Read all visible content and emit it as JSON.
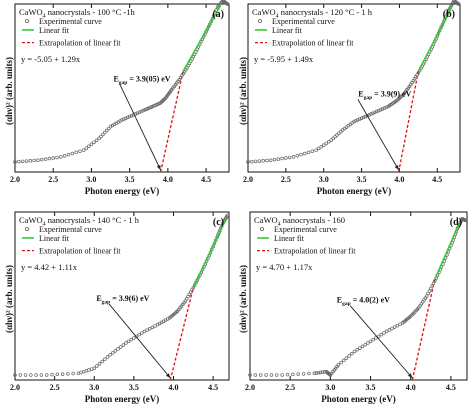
{
  "chart_data": [
    {
      "type": "scatter",
      "panel_letter": "(a)",
      "title": "CaWO4 nanocrystals - 100 °C -1h",
      "title_prefix": "CaWO",
      "title_sub": "4",
      "title_suffix": " nanocrystals - 100 °C -1h",
      "xlabel": "Photon energy (eV)",
      "ylabel": "(αhν)² (arb. units)",
      "xlim": [
        2.0,
        4.8
      ],
      "ylim": [
        0,
        1
      ],
      "xticks": [
        "2.0",
        "2.5",
        "3.0",
        "3.5",
        "4.0",
        "4.5"
      ],
      "xtick_values": [
        2.0,
        2.5,
        3.0,
        3.5,
        4.0,
        4.5
      ],
      "legend": [
        "Experimental curve",
        "Linear fit",
        "Extrapolation of linear fit"
      ],
      "equation": "y = -5.05 + 1.29x",
      "gap_label": "E",
      "gap_sub": "gap",
      "gap_value": " = 3.9(05) eV",
      "gap_eV": 3.905,
      "series": [
        {
          "name": "Experimental curve",
          "x": [
            2.0,
            2.3,
            2.6,
            2.9,
            3.1,
            3.25,
            3.4,
            3.55,
            3.7,
            3.8,
            3.9,
            3.97,
            4.05,
            4.15,
            4.25,
            4.35,
            4.45,
            4.55,
            4.65,
            4.72,
            4.78
          ],
          "y": [
            0.06,
            0.07,
            0.09,
            0.13,
            0.2,
            0.27,
            0.31,
            0.34,
            0.37,
            0.39,
            0.41,
            0.44,
            0.49,
            0.55,
            0.62,
            0.7,
            0.79,
            0.88,
            0.98,
            1.02,
            1.0
          ]
        },
        {
          "name": "Linear fit",
          "x": [
            4.2,
            4.7
          ],
          "y": [
            0.6,
            1.0
          ]
        },
        {
          "name": "Extrapolation of linear fit",
          "x": [
            3.905,
            4.2
          ],
          "y": [
            0.0,
            0.6
          ]
        }
      ],
      "legend_position": "top-left",
      "grid": false
    },
    {
      "type": "scatter",
      "panel_letter": "(b)",
      "title": "CaWO4 nanocrystals - 120 °C - 1 h",
      "title_prefix": "CaWO",
      "title_sub": "4",
      "title_suffix": " nanocrystals - 120 °C - 1 h",
      "xlabel": "Photon energy (eV)",
      "ylabel": "(αhν)² (arb. units)",
      "xlim": [
        2.0,
        4.8
      ],
      "ylim": [
        0,
        1
      ],
      "xticks": [
        "2.0",
        "2.5",
        "3.0",
        "3.5",
        "4.0",
        "4.5"
      ],
      "xtick_values": [
        2.0,
        2.5,
        3.0,
        3.5,
        4.0,
        4.5
      ],
      "legend": [
        "Experimental curve",
        "Linear fit",
        "Extrapolation of linear fit"
      ],
      "equation": "y = -5.95 + 1.49x",
      "gap_label": "E",
      "gap_sub": "gap",
      "gap_value": " = 3.9(9) eV",
      "gap_eV": 3.99,
      "series": [
        {
          "name": "Experimental curve",
          "x": [
            2.0,
            2.3,
            2.6,
            2.9,
            3.1,
            3.25,
            3.4,
            3.55,
            3.7,
            3.85,
            3.95,
            4.05,
            4.15,
            4.25,
            4.35,
            4.45,
            4.55,
            4.65,
            4.72,
            4.78
          ],
          "y": [
            0.06,
            0.07,
            0.09,
            0.13,
            0.19,
            0.25,
            0.3,
            0.33,
            0.36,
            0.39,
            0.42,
            0.46,
            0.52,
            0.59,
            0.67,
            0.76,
            0.86,
            0.96,
            1.02,
            1.0
          ]
        },
        {
          "name": "Linear fit",
          "x": [
            4.25,
            4.7
          ],
          "y": [
            0.6,
            0.99
          ]
        },
        {
          "name": "Extrapolation of linear fit",
          "x": [
            3.99,
            4.25
          ],
          "y": [
            0.0,
            0.6
          ]
        }
      ],
      "legend_position": "top-left",
      "grid": false
    },
    {
      "type": "scatter",
      "panel_letter": "(c)",
      "title": "CaWO4 nanocrystals - 140 °C - 1 h",
      "title_prefix": "CaWO",
      "title_sub": "4",
      "title_suffix": " nanocrystals - 140 °C - 1 h",
      "xlabel": "Photon energy (eV)",
      "ylabel": "(αhν)² (arb. units)",
      "xlim": [
        2.0,
        4.7
      ],
      "ylim": [
        0,
        1
      ],
      "xticks": [
        "2.0",
        "2.5",
        "3.0",
        "3.5",
        "4.0",
        "4.5"
      ],
      "xtick_values": [
        2.0,
        2.5,
        3.0,
        3.5,
        4.0,
        4.5
      ],
      "legend": [
        "Experimental curve",
        "Linear fit",
        "Extrapolation of linear fit"
      ],
      "equation": "y = 4.42 + 1.11x",
      "gap_label": "E",
      "gap_sub": "gap",
      "gap_value": " = 3.9(6) eV",
      "gap_eV": 3.96,
      "series": [
        {
          "name": "Experimental curve",
          "x": [
            2.0,
            2.4,
            2.8,
            3.0,
            3.2,
            3.4,
            3.6,
            3.8,
            3.95,
            4.05,
            4.15,
            4.25,
            4.35,
            4.45,
            4.55,
            4.62,
            4.68
          ],
          "y": [
            0.03,
            0.03,
            0.04,
            0.07,
            0.15,
            0.22,
            0.28,
            0.33,
            0.37,
            0.41,
            0.47,
            0.55,
            0.64,
            0.74,
            0.85,
            0.93,
            0.98
          ]
        },
        {
          "name": "Linear fit",
          "x": [
            4.25,
            4.65
          ],
          "y": [
            0.55,
            0.95
          ]
        },
        {
          "name": "Extrapolation of linear fit",
          "x": [
            3.96,
            4.25
          ],
          "y": [
            0.0,
            0.55
          ]
        }
      ],
      "legend_position": "top-left",
      "grid": false
    },
    {
      "type": "scatter",
      "panel_letter": "(d)",
      "title": "CaWO4 nanocrystals - 160",
      "title_prefix": "CaWO",
      "title_sub": "4",
      "title_suffix": " nanocrystals - 160",
      "xlabel": "Photon energy (eV)",
      "ylabel": "(αhν)² (arb. units)",
      "xlim": [
        2.0,
        4.7
      ],
      "ylim": [
        0,
        1
      ],
      "xticks": [
        "2.0",
        "2.5",
        "3.0",
        "3.5",
        "4.0",
        "4.5"
      ],
      "xtick_values": [
        2.0,
        2.5,
        3.0,
        3.5,
        4.0,
        4.5
      ],
      "legend": [
        "Experimental curve",
        "Linear fit",
        "Extrapolation of linear fit"
      ],
      "equation": "y = 4.70 + 1.17x",
      "gap_label": "E",
      "gap_sub": "gap",
      "gap_value": " = 4.0(2) eV",
      "gap_eV": 4.02,
      "series": [
        {
          "name": "Experimental curve",
          "x": [
            2.0,
            2.4,
            2.8,
            2.95,
            3.0,
            3.1,
            3.3,
            3.5,
            3.7,
            3.9,
            4.0,
            4.1,
            4.2,
            4.3,
            4.4,
            4.5,
            4.58,
            4.64,
            4.68
          ],
          "y": [
            0.03,
            0.03,
            0.04,
            0.05,
            0.03,
            0.09,
            0.17,
            0.23,
            0.29,
            0.34,
            0.38,
            0.43,
            0.5,
            0.59,
            0.69,
            0.8,
            0.9,
            0.96,
            0.95
          ]
        },
        {
          "name": "Linear fit",
          "x": [
            4.3,
            4.62
          ],
          "y": [
            0.6,
            0.95
          ]
        },
        {
          "name": "Extrapolation of linear fit",
          "x": [
            4.02,
            4.3
          ],
          "y": [
            0.0,
            0.6
          ]
        }
      ],
      "legend_position": "top-left",
      "grid": false
    }
  ],
  "colors": {
    "experimental": "#666666",
    "linear_fit": "#33cc33",
    "extrapolation": "#e01010",
    "arrow": "#222222",
    "axis": "#111111"
  }
}
